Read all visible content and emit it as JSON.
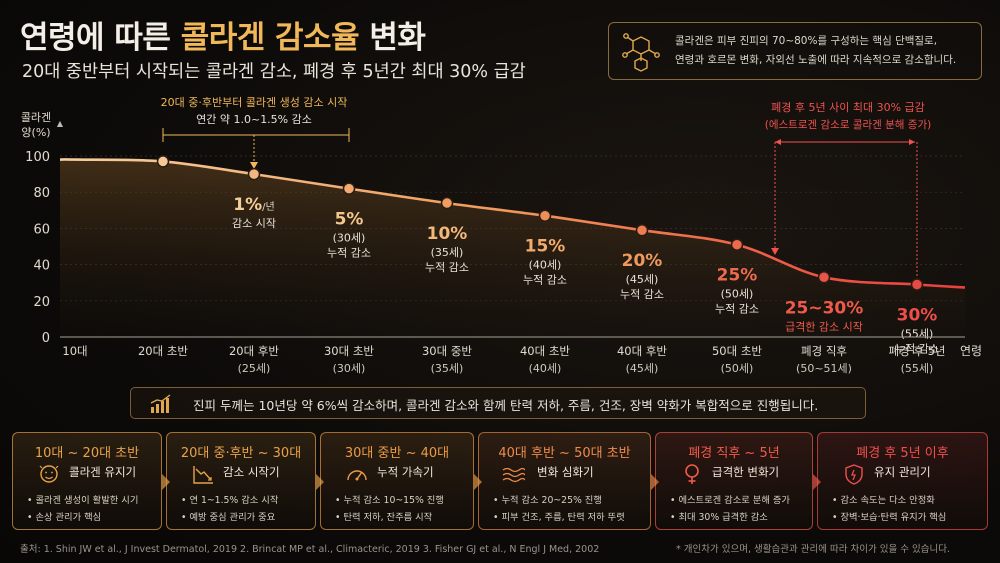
{
  "header": {
    "title_prefix": "연령에 따른 ",
    "title_highlight": "콜라겐 감소율",
    "title_suffix": " 변화",
    "subtitle": "20대 중반부터 시작되는 콜라겐 감소, 폐경 후 5년간 최대 30% 급감"
  },
  "info": {
    "icon": "molecule-icon",
    "line1": "콜라겐은 피부 진피의 70~80%를 구성하는 핵심 단백질로,",
    "line2": "연령과 호르몬 변화, 자외선 노출에 따라 지속적으로 감소합니다."
  },
  "chart_data": {
    "type": "line",
    "ylabel_line1": "콜라겐",
    "ylabel_line2": "양(%)",
    "xlabel": "연령",
    "ylim": [
      0,
      100
    ],
    "yticks": [
      0,
      20,
      40,
      60,
      80,
      100
    ],
    "categories": [
      {
        "label": "10대",
        "sub": ""
      },
      {
        "label": "20대 초반",
        "sub": ""
      },
      {
        "label": "20대 후반",
        "sub": "(25세)"
      },
      {
        "label": "30대 초반",
        "sub": "(30세)"
      },
      {
        "label": "30대 중반",
        "sub": "(35세)"
      },
      {
        "label": "40대 초반",
        "sub": "(40세)"
      },
      {
        "label": "40대 후반",
        "sub": "(45세)"
      },
      {
        "label": "50대 초반",
        "sub": "(50세)"
      },
      {
        "label": "폐경 직후",
        "sub": "(50~51세)"
      },
      {
        "label": "폐경 후 5년",
        "sub": "(55세)"
      }
    ],
    "series": [
      {
        "values": [
          98,
          97,
          90,
          82,
          74,
          67,
          59,
          51,
          33,
          29
        ],
        "point_labels": [
          null,
          null,
          {
            "big": "1%",
            "unit": "/년",
            "line2": "감소 시작",
            "line3": ""
          },
          {
            "big": "5%",
            "unit": "",
            "line2": "(30세)",
            "line3": "누적 감소"
          },
          {
            "big": "10%",
            "unit": "",
            "line2": "(35세)",
            "line3": "누적 감소"
          },
          {
            "big": "15%",
            "unit": "",
            "line2": "(40세)",
            "line3": "누적 감소"
          },
          {
            "big": "20%",
            "unit": "",
            "line2": "(45세)",
            "line3": "누적 감소"
          },
          {
            "big": "25%",
            "unit": "",
            "line2": "(50세)",
            "line3": "누적 감소"
          },
          {
            "big": "25~30%",
            "unit": "",
            "line2": "급격한 감소 시작",
            "line3": ""
          },
          {
            "big": "30%",
            "unit": "",
            "line2": "(55세)",
            "line3": "누적 감소"
          }
        ]
      }
    ],
    "annotations": [
      {
        "line1": "20대 중·후반부터 콜라겐 생성 감소 시작",
        "line2": "연간 약 1.0~1.5% 감소",
        "color": "#f1b85a"
      },
      {
        "line1": "폐경 후 5년 사이 최대 30% 급감",
        "line2": "(에스트로겐 감소로 콜라겐 분해 증가)",
        "color": "#ef5350"
      }
    ]
  },
  "insight": {
    "icon": "trend-chart-icon",
    "text": "진피 두께는 10년당 약 6%씩 감소하며, 콜라겐 감소와 함께 탄력 저하, 주름, 건조, 장벽 약화가 복합적으로 진행됩니다."
  },
  "stages": [
    {
      "title": "10대 ~ 20대 초반",
      "subtitle": "콜라겐 유지기",
      "icon": "face-icon",
      "color": "#e8a24a",
      "b1": "• 콜라겐 생성이 활발한 시기",
      "b2": "• 손상 관리가 핵심"
    },
    {
      "title": "20대 중·후반 ~ 30대",
      "subtitle": "감소 시작기",
      "icon": "declining-chart-icon",
      "color": "#e8a24a",
      "b1": "• 연 1~1.5% 감소 시작",
      "b2": "• 예방 중심 관리가 중요"
    },
    {
      "title": "30대 중반 ~ 40대",
      "subtitle": "누적 가속기",
      "icon": "speedometer-icon",
      "color": "#ec9a45",
      "b1": "• 누적 감소 10~15% 진행",
      "b2": "• 탄력 저하, 잔주름 시작"
    },
    {
      "title": "40대 후반 ~ 50대 초반",
      "subtitle": "변화 심화기",
      "icon": "wave-icon",
      "color": "#ef8a4a",
      "b1": "• 누적 감소 20~25% 진행",
      "b2": "• 피부 건조, 주름, 탄력 저하 뚜렷"
    },
    {
      "title": "폐경 직후 ~ 5년",
      "subtitle": "급격한 변화기",
      "icon": "female-icon",
      "color": "#ef5a4a",
      "b1": "• 에스트로겐 감소로 분해 증가",
      "b2": "• 최대 30% 급격한 감소"
    },
    {
      "title": "폐경 후 5년 이후",
      "subtitle": "유지 관리기",
      "icon": "shield-icon",
      "color": "#ef4e4e",
      "b1": "• 감소 속도는 다소 안정화",
      "b2": "• 장벽·보습·탄력 유지가 핵심"
    }
  ],
  "footer": {
    "source": "출처: 1. Shin JW et al., J Invest Dermatol, 2019   2. Brincat MP et al., Climacteric, 2019   3. Fisher GJ et al., N Engl J Med, 2002",
    "note": "* 개인차가 있으며, 생활습관과 관리에 따라 차이가 있을 수 있습니다."
  }
}
